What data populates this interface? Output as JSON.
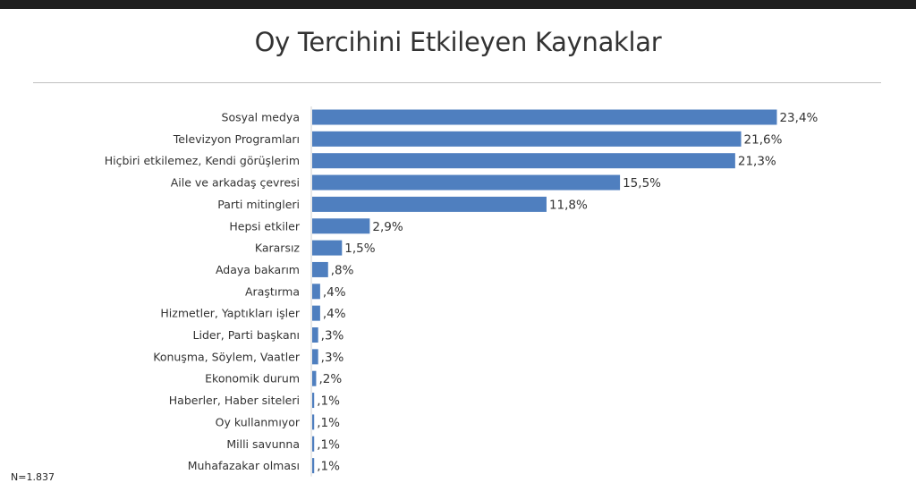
{
  "chart_data": {
    "type": "bar",
    "orientation": "horizontal",
    "title": "Oy Tercihini Etkileyen Kaynaklar",
    "categories": [
      "Sosyal medya",
      "Televizyon Programları",
      "Hiçbiri etkilemez, Kendi görüşlerim",
      "Aile ve arkadaş çevresi",
      "Parti mitingleri",
      "Hepsi etkiler",
      "Kararsız",
      "Adaya bakarım",
      "Araştırma",
      "Hizmetler, Yaptıkları işler",
      "Lider, Parti başkanı",
      "Konuşma, Söylem, Vaatler",
      "Ekonomik durum",
      "Haberler, Haber siteleri",
      "Oy kullanmıyor",
      "Milli savunna",
      "Muhafazakar olması"
    ],
    "values": [
      23.4,
      21.6,
      21.3,
      15.5,
      11.8,
      2.9,
      1.5,
      0.8,
      0.4,
      0.4,
      0.3,
      0.3,
      0.2,
      0.1,
      0.1,
      0.1,
      0.1
    ],
    "value_labels": [
      "23,4%",
      "21,6%",
      "21,3%",
      "15,5%",
      "11,8%",
      "2,9%",
      "1,5%",
      ",8%",
      ",4%",
      ",4%",
      ",3%",
      ",3%",
      ",2%",
      ",1%",
      ",1%",
      ",1%",
      ",1%"
    ],
    "bar_color": "#4f7fbf",
    "grid": false,
    "legend": "none"
  },
  "footnote": "N=1.837"
}
